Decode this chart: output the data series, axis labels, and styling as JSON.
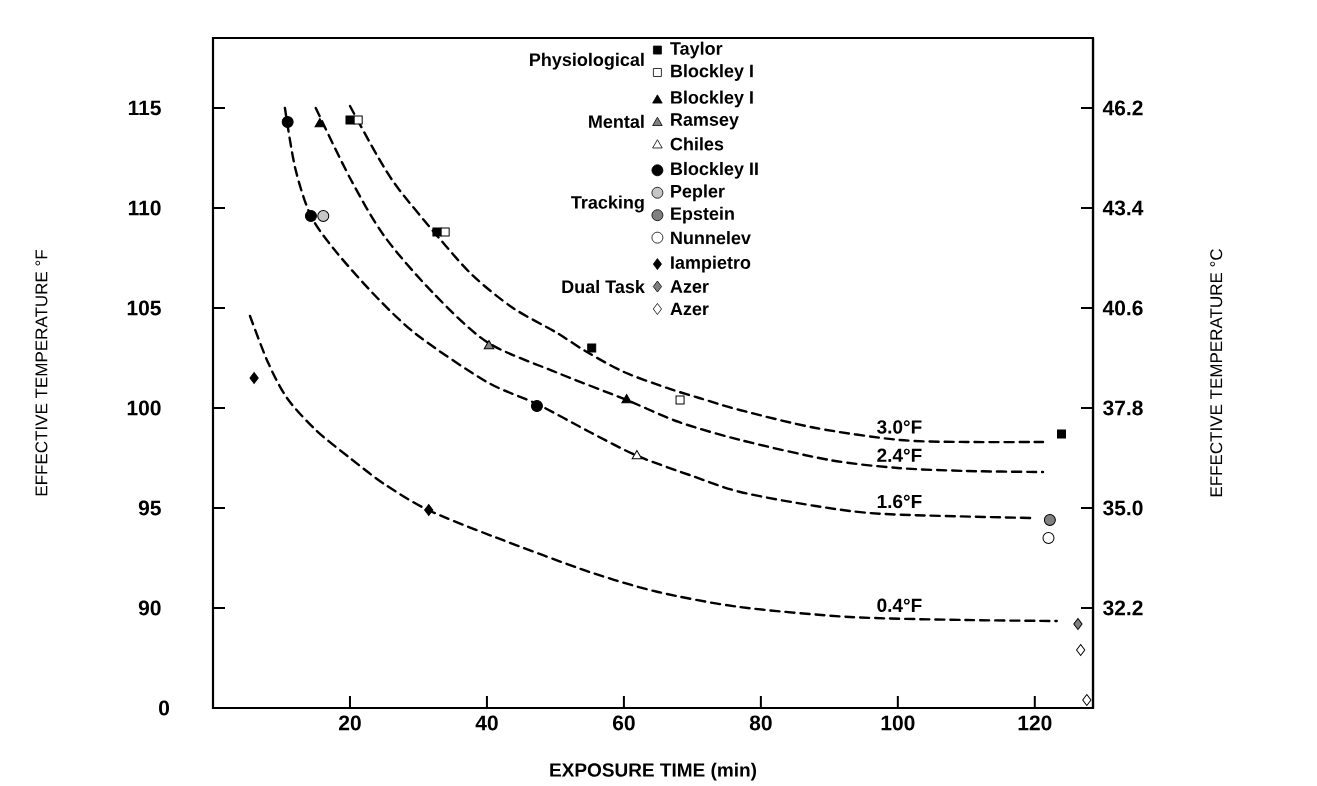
{
  "chart_data": {
    "type": "scatter",
    "xlabel": "EXPOSURE TIME (min)",
    "ylabel": "EFFECTIVE TEMPERATURE °F",
    "y2label": "EFFECTIVE TEMPERATURE °C",
    "xlim": [
      0,
      128.5
    ],
    "xticks": [
      20,
      40,
      60,
      80,
      100,
      120
    ],
    "ylim": [
      85,
      118.5
    ],
    "yticks": [
      90,
      95,
      100,
      105,
      110,
      115
    ],
    "y2lim": [
      29.4,
      48.16
    ],
    "y2ticks": [
      32.2,
      {
        "value": 35,
        "label": "35.0"
      },
      37.8,
      40.6,
      43.4,
      46.2
    ],
    "legend": "top right",
    "grid": false,
    "annotations": [
      "Physiological",
      "Mental",
      "Tracking",
      "Dual Task",
      "0"
    ],
    "series": [
      {
        "name": "Taylor",
        "marker": "square",
        "color": "#000000",
        "x": [
          20,
          32.7,
          55.3,
          123.9
        ],
        "values": [
          114.4,
          108.8,
          103,
          98.7
        ]
      },
      {
        "name": "Blockley I",
        "marker": "square",
        "color": "#000000",
        "x": [
          21.2,
          33.9,
          68.2
        ],
        "values": [
          114.4,
          108.8,
          100.4
        ]
      },
      {
        "name": "Blockley I",
        "marker": "triangle",
        "color": "#000000",
        "x": [
          15.6,
          60.4
        ],
        "values": [
          114.2,
          100.4
        ]
      },
      {
        "name": "Ramsey",
        "marker": "triangle",
        "color": "#000000",
        "x": [
          40.3
        ],
        "values": [
          103.1
        ]
      },
      {
        "name": "Chiles",
        "marker": "triangle",
        "color": "#000000",
        "x": [
          61.9
        ],
        "values": [
          97.6
        ]
      },
      {
        "name": "Blockley II",
        "marker": "circle",
        "color": "#000000",
        "x": [
          10.9,
          14.3,
          47.3
        ],
        "values": [
          114.3,
          109.6,
          100.1
        ]
      },
      {
        "name": "Pepler",
        "marker": "circle",
        "color": "#000000",
        "x": [
          16.1
        ],
        "values": [
          109.6
        ]
      },
      {
        "name": "Epstein",
        "marker": "circle",
        "color": "#000000",
        "x": [
          122.2
        ],
        "values": [
          94.4
        ]
      },
      {
        "name": "Nunnelev",
        "marker": "circle",
        "color": "#000000",
        "x": [
          122
        ],
        "values": [
          93.5
        ]
      },
      {
        "name": "Iampietro",
        "marker": "diamond",
        "color": "#000000",
        "x": [
          6,
          31.5
        ],
        "values": [
          101.5,
          94.9
        ]
      },
      {
        "name": "Azer",
        "marker": "diamond",
        "color": "#000000",
        "x": [
          126.3
        ],
        "values": [
          89.2
        ]
      },
      {
        "name": "Azer",
        "marker": "diamond",
        "color": "#000000",
        "x": [
          126.7,
          127.6
        ],
        "values": [
          87.9,
          85.4
        ]
      },
      {
        "type": "line",
        "name": "3.0°F",
        "marker": "none",
        "line_style": "dashed",
        "color": "#000000",
        "x": [
          20,
          24,
          27,
          33,
          38,
          43.8,
          50,
          54.6,
          60,
          66.3,
          71,
          76.9,
          88,
          100.3,
          110,
          121.2
        ],
        "values": [
          115.1,
          112.6,
          111,
          108.5,
          106.6,
          105,
          103.8,
          102.8,
          101.8,
          101,
          100.5,
          99.9,
          99,
          98.4,
          98.3,
          98.3
        ]
      },
      {
        "type": "line",
        "name": "2.4°F",
        "marker": "none",
        "line_style": "dashed",
        "color": "#000000",
        "x": [
          15,
          20,
          25,
          32,
          40,
          50,
          60.4,
          68,
          77,
          90,
          100,
          110,
          121.2
        ],
        "values": [
          115,
          111.5,
          108.6,
          105.8,
          103.3,
          101.8,
          100.4,
          99.3,
          98.4,
          97.4,
          97,
          96.85,
          96.8
        ]
      },
      {
        "type": "line",
        "name": "1.6°F",
        "marker": "none",
        "line_style": "dashed",
        "color": "#000000",
        "x": [
          10.5,
          12,
          14.3,
          18,
          24,
          30,
          40,
          47.3,
          55,
          62,
          70,
          77,
          88,
          98,
          119.7
        ],
        "values": [
          115,
          112,
          109.6,
          107.8,
          105.5,
          103.6,
          101.3,
          100.2,
          98.8,
          97.6,
          96.6,
          95.8,
          95.1,
          94.7,
          94.5
        ]
      },
      {
        "type": "line",
        "name": "0.4°F",
        "marker": "none",
        "line_style": "dashed",
        "color": "#000000",
        "x": [
          5.4,
          8,
          10.8,
          15,
          20,
          25,
          31.4,
          41.5,
          55,
          65,
          76.9,
          93,
          110,
          123.2
        ],
        "values": [
          104.6,
          102.3,
          100.5,
          98.9,
          97.5,
          96.2,
          94.9,
          93.5,
          91.8,
          90.8,
          90.05,
          89.55,
          89.4,
          89.35
        ]
      }
    ]
  }
}
